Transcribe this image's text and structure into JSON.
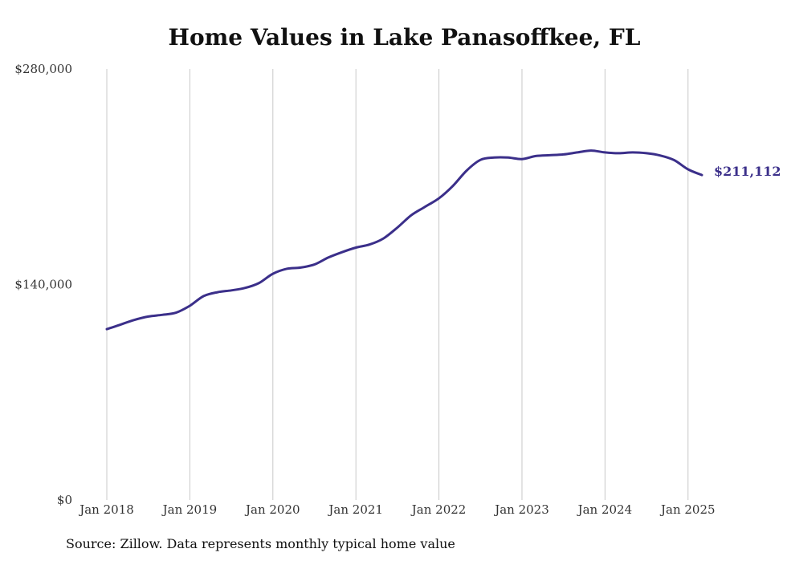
{
  "chart_data": {
    "type": "line",
    "title": "Home Values in Lake Panasoffkee, FL",
    "xlabel": "",
    "ylabel": "",
    "ylim": [
      0,
      280000
    ],
    "yticks": [
      0,
      140000,
      280000
    ],
    "ytick_labels": [
      "$0",
      "$140,000",
      "$280,000"
    ],
    "xlim": [
      "2018-01",
      "2025-03"
    ],
    "xticks": [
      "2018-01",
      "2019-01",
      "2020-01",
      "2021-01",
      "2022-01",
      "2023-01",
      "2024-01",
      "2025-01"
    ],
    "xtick_labels": [
      "Jan 2018",
      "Jan 2019",
      "Jan 2020",
      "Jan 2021",
      "Jan 2022",
      "Jan 2023",
      "Jan 2024",
      "Jan 2025"
    ],
    "grid": "vertical",
    "legend": "none",
    "line_color": "#3b2f8a",
    "series": [
      {
        "x": [
          "2018-01",
          "2018-03",
          "2018-05",
          "2018-07",
          "2018-09",
          "2018-11",
          "2019-01",
          "2019-03",
          "2019-05",
          "2019-07",
          "2019-09",
          "2019-11",
          "2020-01",
          "2020-03",
          "2020-05",
          "2020-07",
          "2020-09",
          "2020-11",
          "2021-01",
          "2021-03",
          "2021-05",
          "2021-07",
          "2021-09",
          "2021-11",
          "2022-01",
          "2022-03",
          "2022-05",
          "2022-07",
          "2022-09",
          "2022-11",
          "2023-01",
          "2023-03",
          "2023-05",
          "2023-07",
          "2023-09",
          "2023-11",
          "2024-01",
          "2024-03",
          "2024-05",
          "2024-07",
          "2024-09",
          "2024-11",
          "2025-01",
          "2025-03"
        ],
        "values": [
          111000,
          114000,
          117000,
          119200,
          120300,
          121700,
          126200,
          132500,
          135000,
          136200,
          137800,
          141000,
          147000,
          150200,
          151000,
          153000,
          157500,
          161000,
          164000,
          166000,
          170000,
          177000,
          185000,
          190500,
          196000,
          204000,
          214000,
          221000,
          222500,
          222500,
          221500,
          223500,
          224000,
          224500,
          225800,
          227000,
          225800,
          225300,
          225800,
          225300,
          223800,
          220800,
          214800,
          211112
        ]
      }
    ],
    "end_label": "$211,112"
  },
  "footer": {
    "source": "Source: Zillow. Data represents monthly typical home value"
  }
}
